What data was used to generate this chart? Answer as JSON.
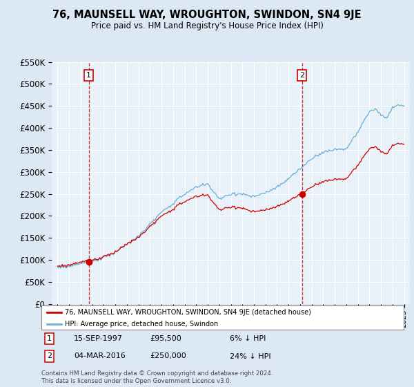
{
  "title": "76, MAUNSELL WAY, WROUGHTON, SWINDON, SN4 9JE",
  "subtitle": "Price paid vs. HM Land Registry's House Price Index (HPI)",
  "legend_label_red": "76, MAUNSELL WAY, WROUGHTON, SWINDON, SN4 9JE (detached house)",
  "legend_label_blue": "HPI: Average price, detached house, Swindon",
  "sale1_date": "15-SEP-1997",
  "sale1_price": 95500,
  "sale1_pct": "6% ↓ HPI",
  "sale2_date": "04-MAR-2016",
  "sale2_price": 250000,
  "sale2_pct": "24% ↓ HPI",
  "copyright": "Contains HM Land Registry data © Crown copyright and database right 2024.\nThis data is licensed under the Open Government Licence v3.0.",
  "bg_color": "#dce9f5",
  "plot_bg": "#e8f0f8",
  "red_color": "#cc0000",
  "blue_color": "#6baed6",
  "ylim_min": 0,
  "ylim_max": 550000,
  "ytick_step": 50000,
  "sale1_yr": 1997.71,
  "sale2_yr": 2016.17
}
